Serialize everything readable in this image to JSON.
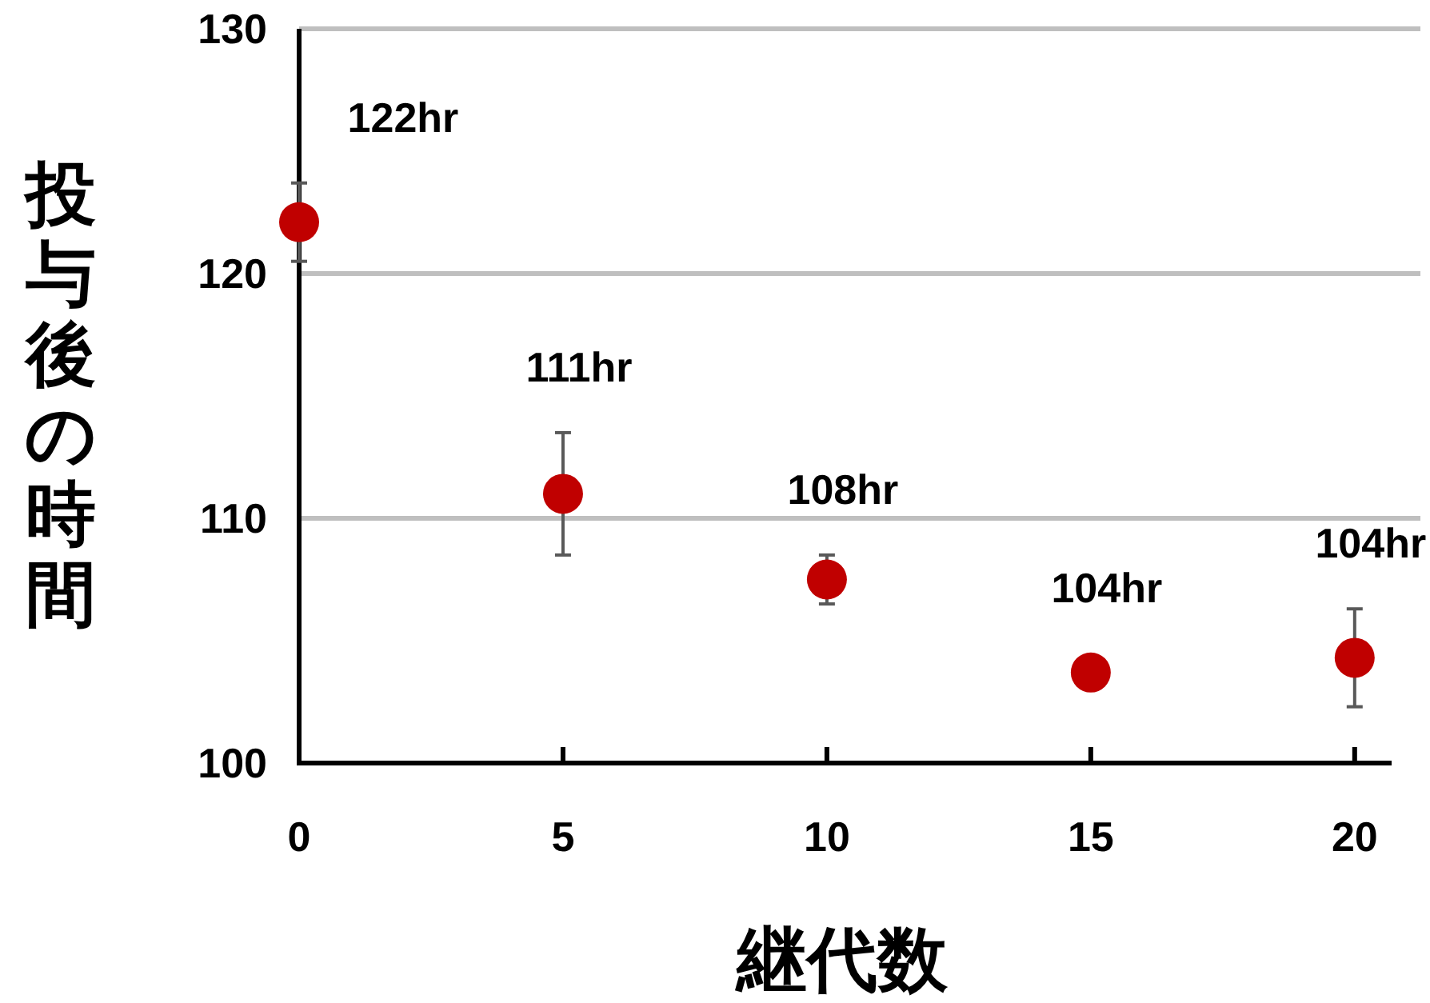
{
  "chart_data": {
    "type": "scatter",
    "xlabel": "継代数",
    "ylabel": "投与後の時間",
    "x": [
      0,
      5,
      10,
      15,
      20
    ],
    "series": [
      {
        "color": "#c00000",
        "values": [
          122.1,
          111.0,
          107.5,
          103.7,
          104.3
        ],
        "errors": [
          1.6,
          2.5,
          1.0,
          null,
          2.0
        ],
        "value_labels": [
          "122hr",
          "111hr",
          "108hr",
          "104hr",
          "104hr"
        ]
      }
    ],
    "xlim": [
      0,
      20.7
    ],
    "xticks": [
      0,
      5,
      10,
      15,
      20
    ],
    "ylim": [
      100,
      130
    ],
    "yticks": [
      100,
      110,
      120,
      130
    ],
    "grid": "y",
    "marker": "circle",
    "legend": false
  }
}
